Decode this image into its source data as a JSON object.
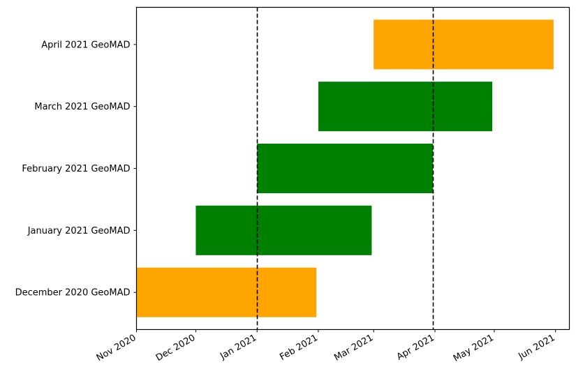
{
  "chart_data": {
    "type": "bar",
    "orientation": "horizontal",
    "title": "",
    "xlabel": "",
    "ylabel": "",
    "grid": false,
    "legend": null,
    "x_axis": {
      "type": "date",
      "range": [
        "2020-11-01",
        "2021-06-08"
      ],
      "ticks": [
        {
          "label": "Nov 2020",
          "date": "2020-11-01"
        },
        {
          "label": "Dec 2020",
          "date": "2020-12-01"
        },
        {
          "label": "Jan 2021",
          "date": "2021-01-01"
        },
        {
          "label": "Feb 2021",
          "date": "2021-02-01"
        },
        {
          "label": "Mar 2021",
          "date": "2021-03-01"
        },
        {
          "label": "Apr 2021",
          "date": "2021-04-01"
        },
        {
          "label": "May 2021",
          "date": "2021-05-01"
        },
        {
          "label": "Jun 2021",
          "date": "2021-06-01"
        }
      ],
      "tick_rotation": 30
    },
    "categories": [
      "December 2020 GeoMAD",
      "January 2021 GeoMAD",
      "February 2021 GeoMAD",
      "March 2021 GeoMAD",
      "April 2021 GeoMAD"
    ],
    "bars": [
      {
        "label": "December 2020 GeoMAD",
        "start": "2020-11-01",
        "end": "2021-01-31",
        "color": "#ffa500"
      },
      {
        "label": "January 2021 GeoMAD",
        "start": "2020-12-01",
        "end": "2021-02-28",
        "color": "#008000"
      },
      {
        "label": "February 2021 GeoMAD",
        "start": "2021-01-01",
        "end": "2021-03-31",
        "color": "#008000"
      },
      {
        "label": "March 2021 GeoMAD",
        "start": "2021-02-01",
        "end": "2021-04-30",
        "color": "#008000"
      },
      {
        "label": "April 2021 GeoMAD",
        "start": "2021-03-01",
        "end": "2021-05-31",
        "color": "#ffa500"
      }
    ],
    "reference_lines": [
      {
        "orientation": "vertical",
        "date": "2021-01-01",
        "style": "dashed",
        "color": "#000000"
      },
      {
        "orientation": "vertical",
        "date": "2021-03-31",
        "style": "dashed",
        "color": "#000000"
      }
    ]
  }
}
